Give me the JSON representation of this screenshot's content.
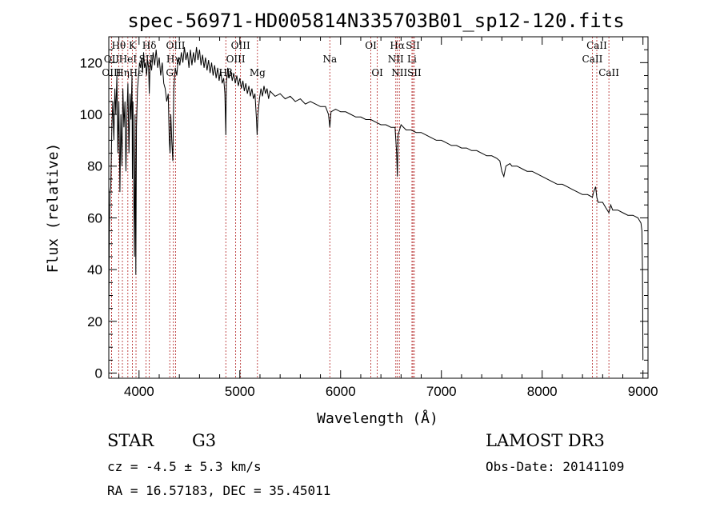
{
  "chart_data": {
    "type": "line",
    "title": "spec-56971-HD005814N335703B01_sp12-120.fits",
    "xlabel": "Wavelength (Å)",
    "ylabel": "Flux (relative)",
    "xlim": [
      3700,
      9050
    ],
    "ylim": [
      -2,
      130
    ],
    "xticks": [
      4000,
      5000,
      6000,
      7000,
      8000,
      9000
    ],
    "yticks": [
      0,
      20,
      40,
      60,
      80,
      100,
      120
    ],
    "xtick_labels": [
      "4000",
      "5000",
      "6000",
      "7000",
      "8000",
      "9000"
    ],
    "ytick_labels": [
      "0",
      "20",
      "40",
      "60",
      "80",
      "100",
      "120"
    ],
    "series": [
      {
        "name": "flux",
        "points": [
          [
            3700,
            20
          ],
          [
            3705,
            55
          ],
          [
            3712,
            70
          ],
          [
            3720,
            72
          ],
          [
            3730,
            95
          ],
          [
            3740,
            105
          ],
          [
            3750,
            90
          ],
          [
            3760,
            110
          ],
          [
            3770,
            100
          ],
          [
            3780,
            115
          ],
          [
            3790,
            85
          ],
          [
            3800,
            105
          ],
          [
            3810,
            70
          ],
          [
            3820,
            100
          ],
          [
            3830,
            80
          ],
          [
            3840,
            110
          ],
          [
            3850,
            95
          ],
          [
            3860,
            105
          ],
          [
            3870,
            78
          ],
          [
            3880,
            100
          ],
          [
            3890,
            112
          ],
          [
            3900,
            85
          ],
          [
            3910,
            108
          ],
          [
            3920,
            98
          ],
          [
            3930,
            115
          ],
          [
            3934,
            75
          ],
          [
            3940,
            105
          ],
          [
            3950,
            60
          ],
          [
            3955,
            45
          ],
          [
            3960,
            100
          ],
          [
            3968,
            38
          ],
          [
            3975,
            95
          ],
          [
            3985,
            110
          ],
          [
            3995,
            115
          ],
          [
            4005,
            120
          ],
          [
            4015,
            118
          ],
          [
            4025,
            122
          ],
          [
            4035,
            116
          ],
          [
            4045,
            124
          ],
          [
            4055,
            118
          ],
          [
            4065,
            120
          ],
          [
            4075,
            115
          ],
          [
            4085,
            121
          ],
          [
            4095,
            118
          ],
          [
            4102,
            108
          ],
          [
            4110,
            121
          ],
          [
            4125,
            117
          ],
          [
            4140,
            124
          ],
          [
            4155,
            119
          ],
          [
            4170,
            125
          ],
          [
            4185,
            118
          ],
          [
            4200,
            122
          ],
          [
            4215,
            115
          ],
          [
            4230,
            120
          ],
          [
            4245,
            112
          ],
          [
            4260,
            110
          ],
          [
            4275,
            105
          ],
          [
            4290,
            108
          ],
          [
            4300,
            90
          ],
          [
            4308,
            85
          ],
          [
            4315,
            100
          ],
          [
            4325,
            90
          ],
          [
            4335,
            82
          ],
          [
            4345,
            110
          ],
          [
            4360,
            118
          ],
          [
            4375,
            115
          ],
          [
            4390,
            122
          ],
          [
            4405,
            119
          ],
          [
            4420,
            124
          ],
          [
            4435,
            120
          ],
          [
            4450,
            126
          ],
          [
            4465,
            121
          ],
          [
            4480,
            124
          ],
          [
            4495,
            118
          ],
          [
            4510,
            125
          ],
          [
            4525,
            119
          ],
          [
            4540,
            124
          ],
          [
            4555,
            120
          ],
          [
            4570,
            126
          ],
          [
            4585,
            121
          ],
          [
            4600,
            125
          ],
          [
            4615,
            119
          ],
          [
            4630,
            123
          ],
          [
            4645,
            118
          ],
          [
            4660,
            122
          ],
          [
            4675,
            117
          ],
          [
            4690,
            121
          ],
          [
            4705,
            116
          ],
          [
            4720,
            120
          ],
          [
            4735,
            115
          ],
          [
            4750,
            119
          ],
          [
            4765,
            114
          ],
          [
            4780,
            118
          ],
          [
            4795,
            113
          ],
          [
            4810,
            117
          ],
          [
            4825,
            112
          ],
          [
            4840,
            114
          ],
          [
            4852,
            108
          ],
          [
            4861,
            92
          ],
          [
            4866,
            112
          ],
          [
            4880,
            118
          ],
          [
            4895,
            114
          ],
          [
            4910,
            117
          ],
          [
            4925,
            113
          ],
          [
            4940,
            116
          ],
          [
            4955,
            112
          ],
          [
            4970,
            115
          ],
          [
            4985,
            111
          ],
          [
            5000,
            114
          ],
          [
            5015,
            110
          ],
          [
            5030,
            113
          ],
          [
            5045,
            109
          ],
          [
            5060,
            112
          ],
          [
            5075,
            108
          ],
          [
            5090,
            111
          ],
          [
            5105,
            107
          ],
          [
            5120,
            110
          ],
          [
            5135,
            106
          ],
          [
            5150,
            108
          ],
          [
            5165,
            98
          ],
          [
            5172,
            92
          ],
          [
            5180,
            100
          ],
          [
            5195,
            106
          ],
          [
            5210,
            110
          ],
          [
            5225,
            107
          ],
          [
            5240,
            111
          ],
          [
            5255,
            108
          ],
          [
            5270,
            110
          ],
          [
            5285,
            106
          ],
          [
            5300,
            109
          ],
          [
            5350,
            107
          ],
          [
            5400,
            108
          ],
          [
            5450,
            106
          ],
          [
            5500,
            107
          ],
          [
            5550,
            105
          ],
          [
            5600,
            106
          ],
          [
            5650,
            104
          ],
          [
            5700,
            105
          ],
          [
            5750,
            104
          ],
          [
            5800,
            103
          ],
          [
            5850,
            103
          ],
          [
            5880,
            100
          ],
          [
            5893,
            95
          ],
          [
            5905,
            101
          ],
          [
            5950,
            102
          ],
          [
            6000,
            101
          ],
          [
            6050,
            101
          ],
          [
            6100,
            100
          ],
          [
            6150,
            99
          ],
          [
            6200,
            99
          ],
          [
            6250,
            98
          ],
          [
            6300,
            98
          ],
          [
            6350,
            97
          ],
          [
            6400,
            96
          ],
          [
            6450,
            96
          ],
          [
            6500,
            95
          ],
          [
            6540,
            95
          ],
          [
            6556,
            85
          ],
          [
            6563,
            76
          ],
          [
            6570,
            92
          ],
          [
            6600,
            96
          ],
          [
            6650,
            94
          ],
          [
            6700,
            94
          ],
          [
            6750,
            93
          ],
          [
            6800,
            93
          ],
          [
            6850,
            92
          ],
          [
            6900,
            91
          ],
          [
            6950,
            90
          ],
          [
            7000,
            90
          ],
          [
            7050,
            89
          ],
          [
            7100,
            88
          ],
          [
            7150,
            88
          ],
          [
            7200,
            87
          ],
          [
            7250,
            87
          ],
          [
            7300,
            86
          ],
          [
            7350,
            86
          ],
          [
            7400,
            85
          ],
          [
            7450,
            84
          ],
          [
            7500,
            84
          ],
          [
            7550,
            83
          ],
          [
            7580,
            82
          ],
          [
            7600,
            78
          ],
          [
            7620,
            76
          ],
          [
            7640,
            80
          ],
          [
            7680,
            81
          ],
          [
            7700,
            80
          ],
          [
            7750,
            80
          ],
          [
            7800,
            79
          ],
          [
            7850,
            78
          ],
          [
            7900,
            78
          ],
          [
            7950,
            77
          ],
          [
            8000,
            76
          ],
          [
            8050,
            75
          ],
          [
            8100,
            74
          ],
          [
            8150,
            73
          ],
          [
            8200,
            73
          ],
          [
            8250,
            72
          ],
          [
            8300,
            71
          ],
          [
            8350,
            70
          ],
          [
            8400,
            69
          ],
          [
            8450,
            69
          ],
          [
            8498,
            68
          ],
          [
            8510,
            70
          ],
          [
            8530,
            72
          ],
          [
            8542,
            68
          ],
          [
            8555,
            66
          ],
          [
            8600,
            66
          ],
          [
            8630,
            64
          ],
          [
            8662,
            62
          ],
          [
            8680,
            65
          ],
          [
            8700,
            63
          ],
          [
            8750,
            63
          ],
          [
            8800,
            62
          ],
          [
            8850,
            61
          ],
          [
            8900,
            61
          ],
          [
            8950,
            60
          ],
          [
            8980,
            58
          ],
          [
            8990,
            55
          ],
          [
            8995,
            40
          ],
          [
            9000,
            5
          ]
        ]
      }
    ],
    "line_markers": [
      {
        "label": "Hθ",
        "x": 3798,
        "row": 1
      },
      {
        "label": "OII",
        "x": 3727,
        "row": 2
      },
      {
        "label": "OIII",
        "x": 3727,
        "row": 3
      },
      {
        "label": "Hη",
        "x": 3835,
        "row": 3
      },
      {
        "label": "HeI",
        "x": 3889,
        "row": 2
      },
      {
        "label": "K",
        "x": 3934,
        "row": 1
      },
      {
        "label": "Hε",
        "x": 3970,
        "row": 3
      },
      {
        "label": "SII",
        "x": 4069,
        "row": 2
      },
      {
        "label": "Hδ",
        "x": 4102,
        "row": 1
      },
      {
        "label": "OIII",
        "x": 4363,
        "row": 1
      },
      {
        "label": "Hγ",
        "x": 4341,
        "row": 2
      },
      {
        "label": "G",
        "x": 4305,
        "row": 3
      },
      {
        "label": "Hβ",
        "x": 4861,
        "row": 3
      },
      {
        "label": "OIII",
        "x": 5007,
        "row": 1
      },
      {
        "label": "OIII",
        "x": 4959,
        "row": 2
      },
      {
        "label": "Mg",
        "x": 5175,
        "row": 3
      },
      {
        "label": "Na",
        "x": 5893,
        "row": 2
      },
      {
        "label": "OI",
        "x": 6300,
        "row": 1
      },
      {
        "label": "OI",
        "x": 6364,
        "row": 3
      },
      {
        "label": "Hα",
        "x": 6563,
        "row": 1
      },
      {
        "label": "NII",
        "x": 6548,
        "row": 2
      },
      {
        "label": "NII",
        "x": 6583,
        "row": 3
      },
      {
        "label": "SII",
        "x": 6717,
        "row": 1
      },
      {
        "label": "Li",
        "x": 6708,
        "row": 2
      },
      {
        "label": "SII",
        "x": 6731,
        "row": 3
      },
      {
        "label": "CaII",
        "x": 8542,
        "row": 1
      },
      {
        "label": "CaII",
        "x": 8498,
        "row": 2
      },
      {
        "label": "CaII",
        "x": 8662,
        "row": 3
      }
    ]
  },
  "info": {
    "object_class": "STAR",
    "subclass": "G3",
    "survey": "LAMOST DR3",
    "cz": "cz = -4.5 ± 5.3 km/s",
    "obs_date": "Obs-Date: 20141109",
    "coords": "RA =  16.57183, DEC =  35.45011"
  }
}
